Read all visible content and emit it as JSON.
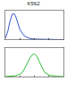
{
  "chart_data": [
    {
      "type": "line",
      "title": "K562",
      "x": [
        1,
        1.5,
        2,
        2.5,
        3,
        4,
        5,
        6,
        8,
        10,
        15,
        20,
        30,
        50,
        100,
        300,
        1000,
        10000
      ],
      "values": [
        5,
        30,
        60,
        80,
        88,
        90,
        82,
        70,
        50,
        35,
        22,
        14,
        8,
        4,
        2,
        1,
        0,
        0
      ],
      "color": "#3355cc",
      "log": "x",
      "xlim": [
        1,
        10000
      ],
      "ylim": [
        0,
        100
      ],
      "xticks": [
        1,
        10,
        100,
        1000,
        10000
      ],
      "tick_labels": false
    },
    {
      "type": "line",
      "x": [
        1,
        3,
        5,
        10,
        15,
        20,
        30,
        40,
        50,
        70,
        100,
        150,
        200,
        300,
        500,
        1000,
        3000,
        10000
      ],
      "values": [
        0,
        1,
        3,
        8,
        15,
        25,
        40,
        55,
        65,
        75,
        78,
        70,
        55,
        35,
        15,
        5,
        1,
        0
      ],
      "color": "#33bb33",
      "log": "x",
      "xlim": [
        1,
        10000
      ],
      "ylim": [
        0,
        100
      ],
      "xticks": [
        1,
        10,
        100,
        1000,
        10000
      ],
      "tick_labels": false
    }
  ]
}
